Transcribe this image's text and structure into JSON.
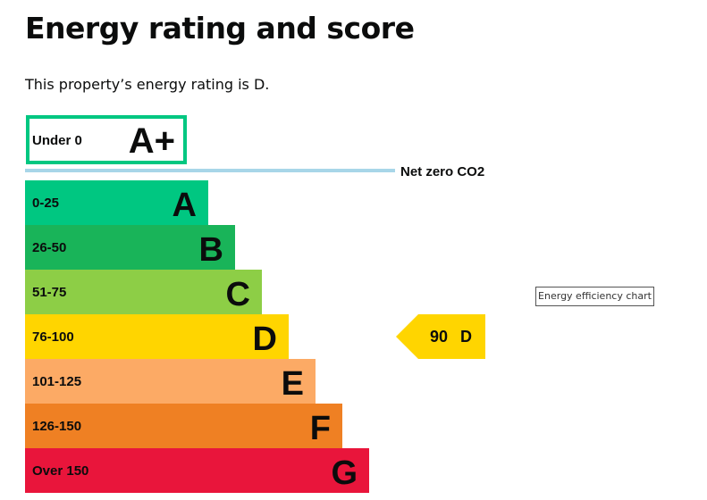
{
  "page": {
    "title": "Energy rating and score",
    "summary": "This property’s energy rating is D.",
    "tooltip": "Energy efficiency chart"
  },
  "chart_data": {
    "type": "bar",
    "title": "",
    "net_zero_label": "Net zero CO2",
    "top_band": {
      "range": "Under 0",
      "letter": "A+",
      "color": "#00c781"
    },
    "bands": [
      {
        "range": "0-25",
        "letter": "A",
        "color": "#00c781"
      },
      {
        "range": "26-50",
        "letter": "B",
        "color": "#19b459"
      },
      {
        "range": "51-75",
        "letter": "C",
        "color": "#8dce46"
      },
      {
        "range": "76-100",
        "letter": "D",
        "color": "#ffd500"
      },
      {
        "range": "101-125",
        "letter": "E",
        "color": "#fcaa65"
      },
      {
        "range": "126-150",
        "letter": "F",
        "color": "#ef8023"
      },
      {
        "range": "Over 150",
        "letter": "G",
        "color": "#e9153b"
      }
    ],
    "current": {
      "score": 90,
      "letter": "D",
      "color": "#ffd500"
    },
    "net_zero_line_color": "#a8d6e8"
  }
}
